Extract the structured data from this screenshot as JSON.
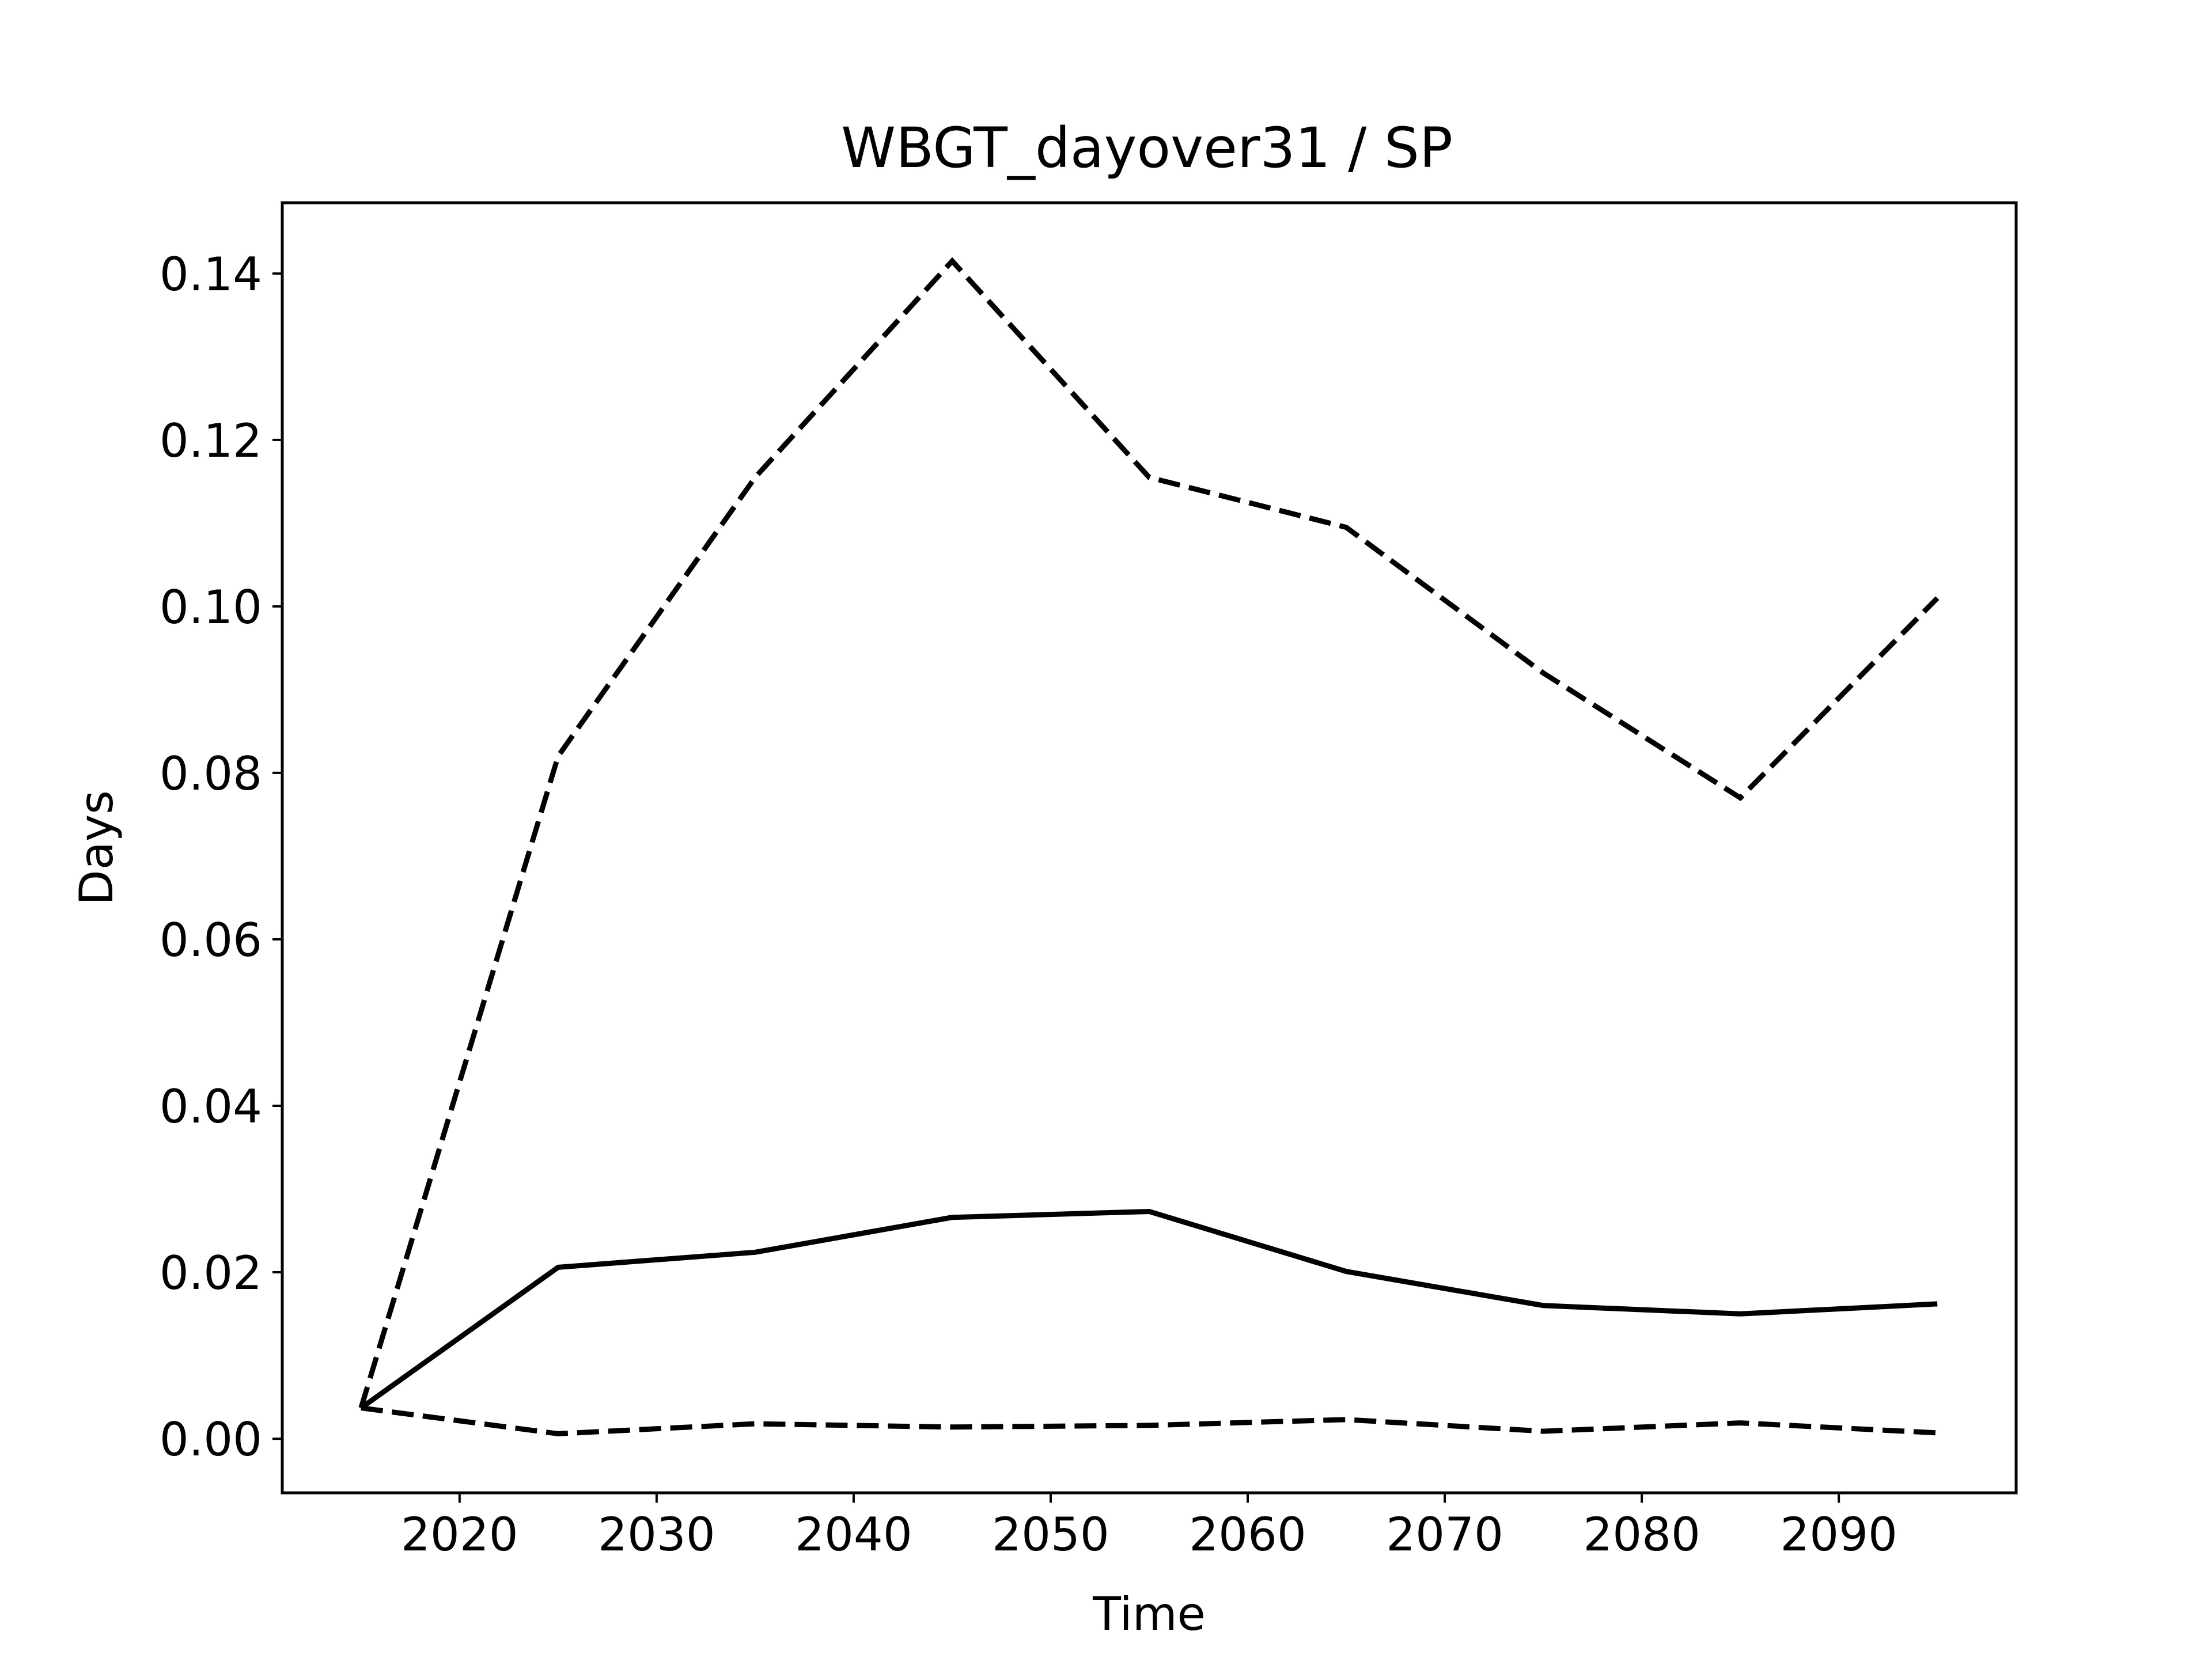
{
  "chart_data": {
    "type": "line",
    "title": "WBGT_dayover31 / SP",
    "xlabel": "Time",
    "ylabel": "Days",
    "xlim": [
      2011,
      2099
    ],
    "ylim": [
      -0.0065,
      0.1485
    ],
    "x_ticks": [
      2020,
      2030,
      2040,
      2050,
      2060,
      2070,
      2080,
      2090
    ],
    "y_ticks": [
      0.0,
      0.02,
      0.04,
      0.06,
      0.08,
      0.1,
      0.12,
      0.14
    ],
    "y_tick_labels": [
      "0.00",
      "0.02",
      "0.04",
      "0.06",
      "0.08",
      "0.10",
      "0.12",
      "0.14"
    ],
    "x_tick_labels": [
      "2020",
      "2030",
      "2040",
      "2050",
      "2060",
      "2070",
      "2080",
      "2090"
    ],
    "grid": false,
    "line_color": "#000000",
    "x": [
      2015,
      2025,
      2035,
      2045,
      2055,
      2065,
      2075,
      2085,
      2095
    ],
    "series": [
      {
        "style": "solid",
        "values": [
          0.0037,
          0.0206,
          0.0224,
          0.0266,
          0.0273,
          0.0201,
          0.016,
          0.015,
          0.0162
        ]
      },
      {
        "style": "dashed",
        "values": [
          0.0037,
          0.082,
          0.1155,
          0.1415,
          0.1155,
          0.1095,
          0.092,
          0.077,
          0.101
        ]
      },
      {
        "style": "dashed",
        "values": [
          0.0037,
          0.0006,
          0.0018,
          0.0014,
          0.0016,
          0.0023,
          0.0009,
          0.0019,
          0.0007
        ]
      }
    ]
  }
}
